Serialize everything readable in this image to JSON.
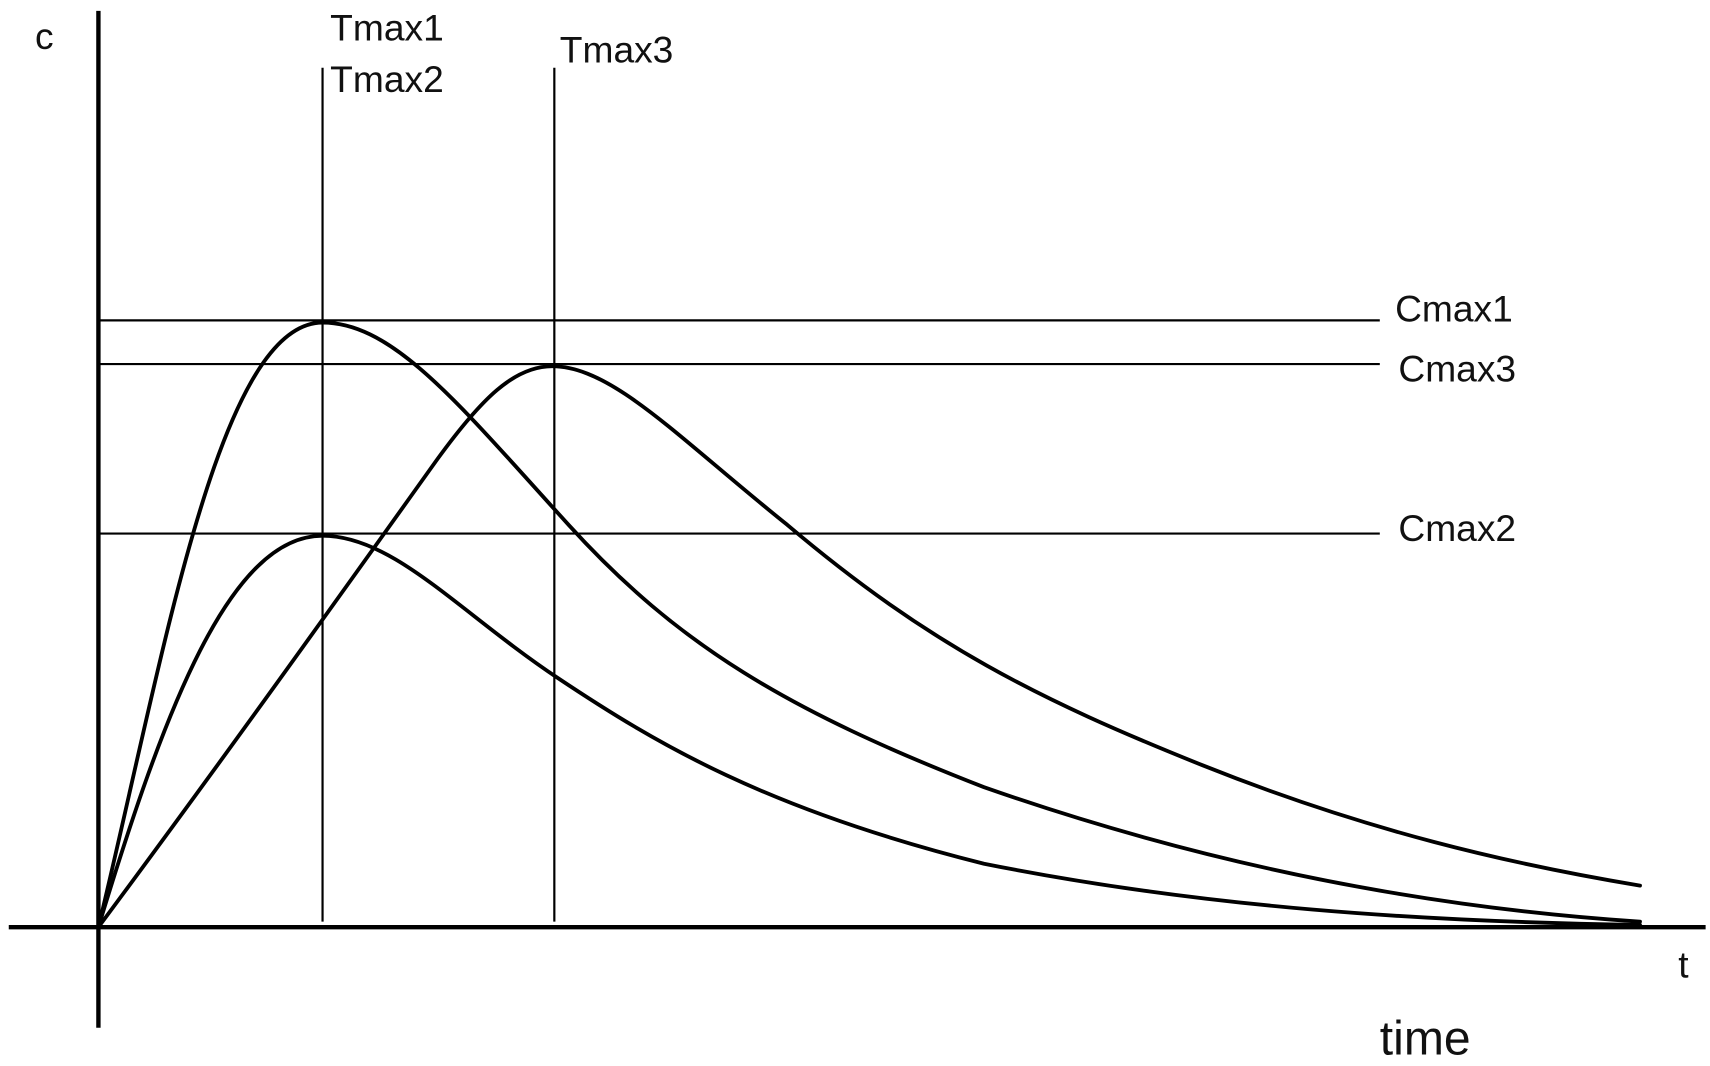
{
  "y_axis_label": "c",
  "x_axis_label": "t",
  "x_axis_title": "time",
  "tmax_labels": [
    "Tmax1",
    "Tmax2",
    "Tmax3"
  ],
  "cmax_labels": [
    "Cmax1",
    "Cmax3",
    "Cmax2"
  ]
}
